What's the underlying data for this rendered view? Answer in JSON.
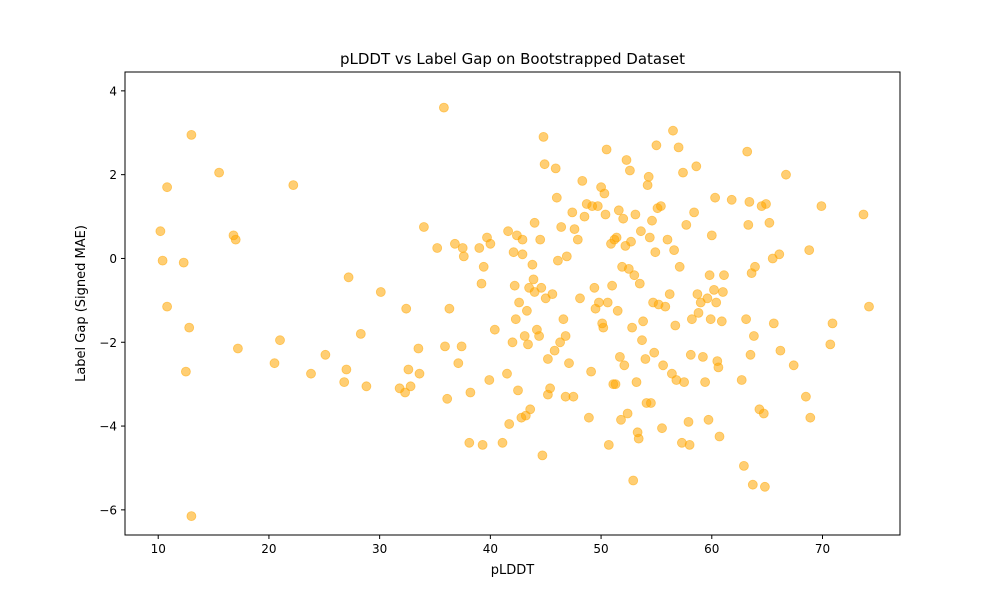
{
  "chart_data": {
    "type": "scatter",
    "title": "pLDDT vs Label Gap on Bootstrapped Dataset",
    "xlabel": "pLDDT",
    "ylabel": "Label Gap (Signed MAE)",
    "xlim": [
      7,
      77
    ],
    "ylim": [
      -6.6,
      4.45
    ],
    "xticks": [
      10,
      20,
      30,
      40,
      50,
      60,
      70
    ],
    "yticks": [
      -6,
      -4,
      -2,
      0,
      2,
      4
    ],
    "grid": false,
    "marker_color": "#FFA500",
    "marker_alpha": 0.55,
    "points": [
      [
        10.2,
        0.65
      ],
      [
        10.4,
        -0.05
      ],
      [
        10.8,
        1.7
      ],
      [
        10.8,
        -1.15
      ],
      [
        12.3,
        -0.1
      ],
      [
        12.5,
        -2.7
      ],
      [
        12.8,
        -1.65
      ],
      [
        13.0,
        2.95
      ],
      [
        13.0,
        -6.15
      ],
      [
        15.5,
        2.05
      ],
      [
        16.8,
        0.55
      ],
      [
        17.0,
        0.45
      ],
      [
        17.2,
        -2.15
      ],
      [
        20.5,
        -2.5
      ],
      [
        21.0,
        -1.95
      ],
      [
        22.2,
        1.75
      ],
      [
        23.8,
        -2.75
      ],
      [
        25.1,
        -2.3
      ],
      [
        26.8,
        -2.95
      ],
      [
        27.0,
        -2.65
      ],
      [
        27.2,
        -0.45
      ],
      [
        28.3,
        -1.8
      ],
      [
        28.8,
        -3.05
      ],
      [
        30.1,
        -0.8
      ],
      [
        31.8,
        -3.1
      ],
      [
        32.3,
        -3.2
      ],
      [
        32.4,
        -1.2
      ],
      [
        32.6,
        -2.65
      ],
      [
        32.8,
        -3.05
      ],
      [
        33.5,
        -2.15
      ],
      [
        33.6,
        -2.75
      ],
      [
        34.0,
        0.75
      ],
      [
        35.2,
        0.25
      ],
      [
        35.8,
        3.6
      ],
      [
        35.9,
        -2.1
      ],
      [
        36.1,
        -3.35
      ],
      [
        36.3,
        -1.2
      ],
      [
        36.8,
        0.35
      ],
      [
        37.1,
        -2.5
      ],
      [
        37.4,
        -2.1
      ],
      [
        37.5,
        0.25
      ],
      [
        37.6,
        0.05
      ],
      [
        38.1,
        -4.4
      ],
      [
        38.2,
        -3.2
      ],
      [
        39.0,
        0.25
      ],
      [
        39.2,
        -0.6
      ],
      [
        39.3,
        -4.45
      ],
      [
        39.4,
        -0.2
      ],
      [
        39.7,
        0.5
      ],
      [
        39.9,
        -2.9
      ],
      [
        40.0,
        0.35
      ],
      [
        40.4,
        -1.7
      ],
      [
        41.1,
        -4.4
      ],
      [
        41.5,
        -2.75
      ],
      [
        41.6,
        0.65
      ],
      [
        41.7,
        -3.95
      ],
      [
        42.0,
        -2.0
      ],
      [
        42.1,
        0.15
      ],
      [
        42.2,
        -0.65
      ],
      [
        42.3,
        -1.45
      ],
      [
        42.4,
        0.55
      ],
      [
        42.5,
        -3.15
      ],
      [
        42.6,
        -1.05
      ],
      [
        42.8,
        -3.8
      ],
      [
        42.9,
        0.45
      ],
      [
        42.9,
        0.1
      ],
      [
        43.1,
        -1.85
      ],
      [
        43.2,
        -3.75
      ],
      [
        43.3,
        -1.25
      ],
      [
        43.4,
        -2.05
      ],
      [
        43.5,
        -0.7
      ],
      [
        43.6,
        -3.6
      ],
      [
        43.8,
        -0.15
      ],
      [
        43.9,
        -0.5
      ],
      [
        44.0,
        0.85
      ],
      [
        44.0,
        -0.8
      ],
      [
        44.2,
        -1.7
      ],
      [
        44.4,
        -1.85
      ],
      [
        44.5,
        0.45
      ],
      [
        44.6,
        -0.7
      ],
      [
        44.7,
        -4.7
      ],
      [
        44.8,
        2.9
      ],
      [
        45.0,
        -0.95
      ],
      [
        45.2,
        -3.25
      ],
      [
        45.2,
        -2.4
      ],
      [
        45.4,
        -3.1
      ],
      [
        45.6,
        -0.85
      ],
      [
        45.8,
        -2.2
      ],
      [
        45.9,
        2.15
      ],
      [
        46.0,
        1.45
      ],
      [
        46.1,
        -0.05
      ],
      [
        46.3,
        -2.0
      ],
      [
        46.4,
        0.75
      ],
      [
        46.6,
        -1.45
      ],
      [
        46.8,
        -1.85
      ],
      [
        46.9,
        0.05
      ],
      [
        47.1,
        -2.5
      ],
      [
        47.4,
        1.1
      ],
      [
        47.5,
        -3.3
      ],
      [
        47.6,
        0.7
      ],
      [
        47.9,
        0.45
      ],
      [
        48.1,
        -0.95
      ],
      [
        48.3,
        1.85
      ],
      [
        48.5,
        1.0
      ],
      [
        48.7,
        1.3
      ],
      [
        48.9,
        -3.8
      ],
      [
        49.1,
        -2.7
      ],
      [
        49.2,
        1.25
      ],
      [
        49.4,
        -0.7
      ],
      [
        49.5,
        -1.2
      ],
      [
        49.7,
        1.25
      ],
      [
        49.8,
        -1.05
      ],
      [
        50.0,
        1.7
      ],
      [
        50.1,
        -1.55
      ],
      [
        50.2,
        -1.65
      ],
      [
        50.3,
        1.55
      ],
      [
        50.4,
        1.05
      ],
      [
        50.5,
        2.6
      ],
      [
        50.6,
        -1.05
      ],
      [
        50.7,
        -4.45
      ],
      [
        50.9,
        0.35
      ],
      [
        51.0,
        -0.65
      ],
      [
        51.1,
        -3.0
      ],
      [
        51.2,
        0.45
      ],
      [
        51.3,
        -3.0
      ],
      [
        51.4,
        0.5
      ],
      [
        51.5,
        -1.25
      ],
      [
        51.6,
        1.15
      ],
      [
        51.7,
        -2.35
      ],
      [
        51.8,
        -3.85
      ],
      [
        51.9,
        -0.2
      ],
      [
        52.0,
        0.95
      ],
      [
        52.1,
        -2.55
      ],
      [
        52.2,
        0.3
      ],
      [
        52.3,
        2.35
      ],
      [
        52.4,
        -3.7
      ],
      [
        52.5,
        -0.25
      ],
      [
        52.6,
        2.1
      ],
      [
        52.7,
        0.4
      ],
      [
        52.8,
        -1.65
      ],
      [
        52.9,
        -5.3
      ],
      [
        53.0,
        -0.4
      ],
      [
        53.1,
        1.05
      ],
      [
        53.2,
        -2.95
      ],
      [
        53.3,
        -4.15
      ],
      [
        53.4,
        -4.3
      ],
      [
        53.5,
        -0.6
      ],
      [
        53.6,
        0.65
      ],
      [
        53.7,
        -1.95
      ],
      [
        53.8,
        -1.5
      ],
      [
        54.0,
        -2.4
      ],
      [
        54.1,
        -3.45
      ],
      [
        54.2,
        1.75
      ],
      [
        54.3,
        1.95
      ],
      [
        54.4,
        0.5
      ],
      [
        54.5,
        -3.45
      ],
      [
        54.6,
        0.9
      ],
      [
        54.7,
        -1.05
      ],
      [
        54.8,
        -2.25
      ],
      [
        54.9,
        0.15
      ],
      [
        55.0,
        2.7
      ],
      [
        55.2,
        -1.1
      ],
      [
        55.4,
        1.25
      ],
      [
        55.5,
        -4.05
      ],
      [
        55.6,
        -2.55
      ],
      [
        55.8,
        -1.15
      ],
      [
        56.0,
        0.45
      ],
      [
        56.2,
        -0.85
      ],
      [
        56.4,
        -2.75
      ],
      [
        56.5,
        3.05
      ],
      [
        56.6,
        0.2
      ],
      [
        56.7,
        -1.6
      ],
      [
        56.8,
        -2.9
      ],
      [
        57.0,
        2.65
      ],
      [
        57.1,
        -0.2
      ],
      [
        57.3,
        -4.4
      ],
      [
        57.4,
        2.05
      ],
      [
        57.5,
        -2.95
      ],
      [
        57.7,
        0.8
      ],
      [
        57.9,
        -3.9
      ],
      [
        58.0,
        -4.45
      ],
      [
        58.1,
        -2.3
      ],
      [
        58.2,
        -1.45
      ],
      [
        58.4,
        1.1
      ],
      [
        58.6,
        2.2
      ],
      [
        58.7,
        -0.85
      ],
      [
        58.8,
        -1.3
      ],
      [
        59.0,
        -1.05
      ],
      [
        59.2,
        -2.35
      ],
      [
        59.4,
        -2.95
      ],
      [
        59.6,
        -0.95
      ],
      [
        59.7,
        -3.85
      ],
      [
        59.8,
        -0.4
      ],
      [
        59.9,
        -1.45
      ],
      [
        60.0,
        0.55
      ],
      [
        60.2,
        -0.75
      ],
      [
        60.3,
        1.45
      ],
      [
        60.4,
        -1.05
      ],
      [
        60.5,
        -2.45
      ],
      [
        60.6,
        -2.6
      ],
      [
        60.7,
        -4.25
      ],
      [
        60.9,
        -1.5
      ],
      [
        61.0,
        -0.8
      ],
      [
        61.1,
        -0.4
      ],
      [
        61.8,
        1.4
      ],
      [
        62.7,
        -2.9
      ],
      [
        62.9,
        -4.95
      ],
      [
        63.1,
        -1.45
      ],
      [
        63.2,
        2.55
      ],
      [
        63.3,
        0.8
      ],
      [
        63.4,
        1.35
      ],
      [
        63.5,
        -2.3
      ],
      [
        63.6,
        -0.35
      ],
      [
        63.7,
        -5.4
      ],
      [
        63.8,
        -1.85
      ],
      [
        63.9,
        -0.2
      ],
      [
        64.3,
        -3.6
      ],
      [
        64.5,
        1.25
      ],
      [
        64.7,
        -3.7
      ],
      [
        64.8,
        -5.45
      ],
      [
        64.9,
        1.3
      ],
      [
        65.2,
        0.85
      ],
      [
        65.5,
        0.0
      ],
      [
        65.6,
        -1.55
      ],
      [
        66.1,
        0.1
      ],
      [
        66.2,
        -2.2
      ],
      [
        66.7,
        2.0
      ],
      [
        67.4,
        -2.55
      ],
      [
        68.5,
        -3.3
      ],
      [
        68.8,
        0.2
      ],
      [
        68.9,
        -3.8
      ],
      [
        69.9,
        1.25
      ],
      [
        70.7,
        -2.05
      ],
      [
        70.9,
        -1.55
      ],
      [
        73.7,
        1.05
      ],
      [
        74.2,
        -1.15
      ],
      [
        44.9,
        2.25
      ],
      [
        46.8,
        -3.3
      ],
      [
        55.1,
        1.2
      ]
    ]
  }
}
